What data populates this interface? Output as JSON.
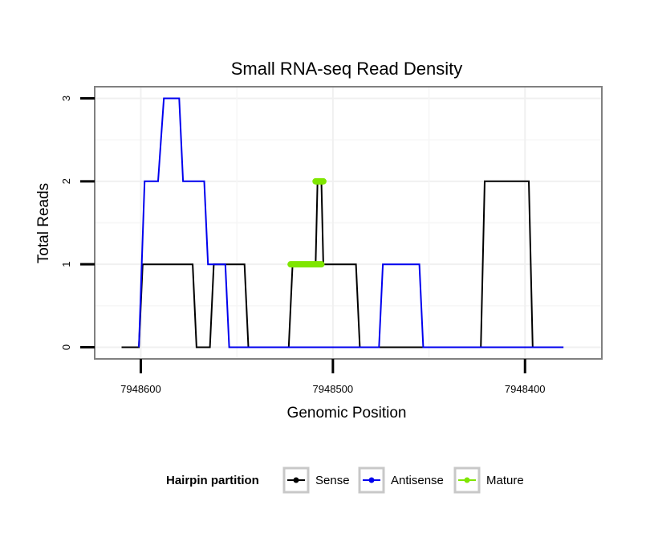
{
  "chart_data": {
    "type": "line",
    "title": "Small RNA-seq Read Density",
    "xlabel": "Genomic Position",
    "ylabel": "Total Reads",
    "x_reversed": true,
    "xlim": [
      7948624,
      7948360
    ],
    "ylim": [
      -0.14,
      3.14
    ],
    "x_ticks": [
      7948600,
      7948500,
      7948400
    ],
    "x_tick_labels": [
      "7948600",
      "7948500",
      "7948400"
    ],
    "y_ticks": [
      0,
      1,
      2,
      3
    ],
    "y_tick_labels": [
      "0",
      "1",
      "2",
      "3"
    ],
    "grid": true,
    "legend": {
      "title": "Hairpin partition",
      "position": "bottom",
      "entries": [
        "Sense",
        "Antisense",
        "Mature"
      ]
    },
    "series": [
      {
        "name": "Sense",
        "color": "#000000",
        "x": [
          7948610,
          7948601,
          7948599,
          7948573,
          7948571,
          7948564,
          7948562,
          7948546,
          7948544,
          7948523,
          7948521,
          7948509,
          7948508,
          7948506,
          7948505,
          7948488,
          7948486,
          7948423,
          7948421,
          7948398,
          7948396,
          7948380
        ],
        "y": [
          0,
          0,
          1,
          1,
          0,
          0,
          1,
          1,
          0,
          0,
          1,
          1,
          2,
          2,
          1,
          1,
          0,
          0,
          2,
          2,
          0,
          0
        ]
      },
      {
        "name": "Antisense",
        "color": "#0000ee",
        "x": [
          7948601,
          7948598,
          7948591,
          7948588,
          7948580,
          7948578,
          7948567,
          7948565,
          7948556,
          7948554,
          7948530,
          7948508,
          7948495,
          7948476,
          7948474,
          7948455,
          7948453,
          7948423,
          7948398,
          7948380
        ],
        "y": [
          0,
          2,
          2,
          3,
          3,
          2,
          2,
          1,
          1,
          0,
          0,
          0,
          0,
          0,
          1,
          1,
          0,
          0,
          0,
          0
        ]
      },
      {
        "name": "Mature",
        "color": "#7fe600",
        "segments": [
          {
            "x": [
              7948522,
              7948506
            ],
            "y": [
              1,
              1
            ]
          },
          {
            "x": [
              7948509,
              7948505
            ],
            "y": [
              2,
              2
            ]
          }
        ]
      }
    ]
  }
}
